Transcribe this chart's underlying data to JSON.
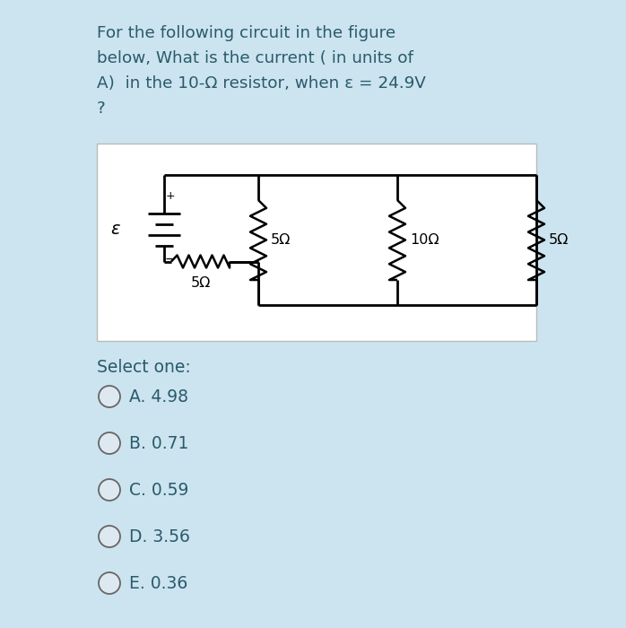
{
  "background_color": "#cce4f0",
  "card_background": "#ffffff",
  "title_lines": [
    "For the following circuit in the figure",
    "below, What is the current ( in units of",
    "A)  in the 10-Ω resistor, when ε = 24.9V",
    "?"
  ],
  "select_one_label": "Select one:",
  "options": [
    "A. 4.98",
    "B. 0.71",
    "C. 0.59",
    "D. 3.56",
    "E. 0.36"
  ],
  "text_color": "#2a5a6a",
  "circuit_text_color": "#000000",
  "font_size_title": 13.2,
  "font_size_options": 13.5,
  "font_size_circuit": 11.5
}
